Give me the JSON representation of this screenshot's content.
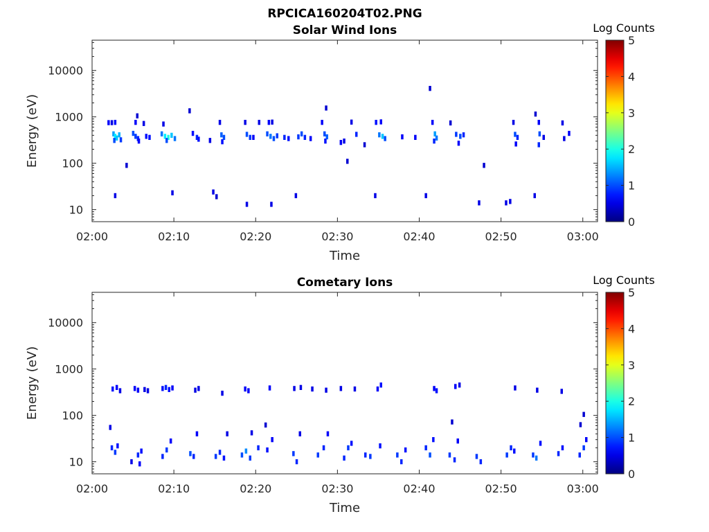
{
  "figure": {
    "title": "RPCICA160204T02.PNG"
  },
  "chart_data": [
    {
      "type": "heatmap",
      "title": "Solar Wind Ions",
      "xlabel": "Time",
      "ylabel": "Energy (eV)",
      "x_ticks": [
        "02:00",
        "02:10",
        "02:20",
        "02:30",
        "02:40",
        "02:50",
        "03:00"
      ],
      "x_range_minutes": [
        0,
        61.8
      ],
      "y_scale": "log",
      "y_ticks": [
        "10",
        "100",
        "1000",
        "10000"
      ],
      "y_range": [
        5.5,
        45000
      ],
      "colorbar": {
        "label": "Log Counts",
        "ticks": [
          "0",
          "1",
          "2",
          "3",
          "4",
          "5"
        ],
        "range": [
          0,
          5
        ],
        "colormap": "jet"
      },
      "grid": false,
      "points": [
        {
          "t": 2.0,
          "e": 750,
          "c": 0.6
        },
        {
          "t": 2.4,
          "e": 750,
          "c": 0.5
        },
        {
          "t": 2.8,
          "e": 760,
          "c": 0.7
        },
        {
          "t": 2.6,
          "e": 430,
          "c": 1.4
        },
        {
          "t": 2.8,
          "e": 380,
          "c": 1.8
        },
        {
          "t": 3.0,
          "e": 350,
          "c": 1.6
        },
        {
          "t": 3.3,
          "e": 410,
          "c": 1.5
        },
        {
          "t": 2.7,
          "e": 310,
          "c": 1.0
        },
        {
          "t": 3.5,
          "e": 320,
          "c": 0.9
        },
        {
          "t": 2.8,
          "e": 20,
          "c": 0.5
        },
        {
          "t": 4.2,
          "e": 90,
          "c": 0.4
        },
        {
          "t": 5.0,
          "e": 440,
          "c": 1.0
        },
        {
          "t": 5.3,
          "e": 380,
          "c": 0.9
        },
        {
          "t": 5.6,
          "e": 340,
          "c": 0.8
        },
        {
          "t": 5.3,
          "e": 760,
          "c": 0.6
        },
        {
          "t": 5.5,
          "e": 1050,
          "c": 0.4
        },
        {
          "t": 5.7,
          "e": 300,
          "c": 0.6
        },
        {
          "t": 6.3,
          "e": 720,
          "c": 0.5
        },
        {
          "t": 6.6,
          "e": 380,
          "c": 0.7
        },
        {
          "t": 7.0,
          "e": 360,
          "c": 0.7
        },
        {
          "t": 8.5,
          "e": 430,
          "c": 1.2
        },
        {
          "t": 8.9,
          "e": 380,
          "c": 1.8
        },
        {
          "t": 9.3,
          "e": 360,
          "c": 2.0
        },
        {
          "t": 9.7,
          "e": 400,
          "c": 1.6
        },
        {
          "t": 10.1,
          "e": 340,
          "c": 1.2
        },
        {
          "t": 9.1,
          "e": 310,
          "c": 1.0
        },
        {
          "t": 8.7,
          "e": 700,
          "c": 0.5
        },
        {
          "t": 9.8,
          "e": 23,
          "c": 0.5
        },
        {
          "t": 11.9,
          "e": 1350,
          "c": 0.4
        },
        {
          "t": 12.3,
          "e": 440,
          "c": 0.7
        },
        {
          "t": 12.8,
          "e": 360,
          "c": 0.8
        },
        {
          "t": 13.0,
          "e": 330,
          "c": 0.7
        },
        {
          "t": 14.4,
          "e": 310,
          "c": 0.5
        },
        {
          "t": 14.8,
          "e": 24,
          "c": 0.5
        },
        {
          "t": 15.2,
          "e": 19,
          "c": 0.4
        },
        {
          "t": 15.6,
          "e": 760,
          "c": 0.5
        },
        {
          "t": 15.8,
          "e": 410,
          "c": 1.1
        },
        {
          "t": 16.1,
          "e": 360,
          "c": 1.0
        },
        {
          "t": 15.9,
          "e": 290,
          "c": 0.7
        },
        {
          "t": 18.7,
          "e": 760,
          "c": 0.5
        },
        {
          "t": 18.9,
          "e": 420,
          "c": 1.0
        },
        {
          "t": 19.3,
          "e": 360,
          "c": 0.9
        },
        {
          "t": 18.9,
          "e": 13,
          "c": 0.5
        },
        {
          "t": 19.7,
          "e": 360,
          "c": 0.6
        },
        {
          "t": 20.4,
          "e": 760,
          "c": 0.5
        },
        {
          "t": 21.4,
          "e": 430,
          "c": 1.0
        },
        {
          "t": 21.8,
          "e": 380,
          "c": 1.2
        },
        {
          "t": 22.2,
          "e": 340,
          "c": 1.0
        },
        {
          "t": 22.6,
          "e": 390,
          "c": 0.9
        },
        {
          "t": 21.6,
          "e": 760,
          "c": 0.6
        },
        {
          "t": 22.0,
          "e": 770,
          "c": 0.5
        },
        {
          "t": 21.9,
          "e": 13,
          "c": 0.5
        },
        {
          "t": 23.5,
          "e": 360,
          "c": 0.8
        },
        {
          "t": 24.0,
          "e": 340,
          "c": 0.7
        },
        {
          "t": 24.9,
          "e": 20,
          "c": 0.5
        },
        {
          "t": 25.2,
          "e": 370,
          "c": 0.9
        },
        {
          "t": 25.6,
          "e": 430,
          "c": 1.0
        },
        {
          "t": 26.0,
          "e": 360,
          "c": 0.8
        },
        {
          "t": 26.7,
          "e": 340,
          "c": 0.6
        },
        {
          "t": 28.1,
          "e": 760,
          "c": 0.6
        },
        {
          "t": 28.4,
          "e": 430,
          "c": 1.0
        },
        {
          "t": 28.7,
          "e": 370,
          "c": 1.1
        },
        {
          "t": 28.6,
          "e": 1550,
          "c": 0.4
        },
        {
          "t": 28.5,
          "e": 300,
          "c": 0.7
        },
        {
          "t": 30.4,
          "e": 280,
          "c": 0.6
        },
        {
          "t": 30.8,
          "e": 300,
          "c": 0.5
        },
        {
          "t": 31.2,
          "e": 110,
          "c": 0.4
        },
        {
          "t": 31.7,
          "e": 770,
          "c": 0.5
        },
        {
          "t": 32.3,
          "e": 420,
          "c": 0.8
        },
        {
          "t": 33.3,
          "e": 250,
          "c": 0.4
        },
        {
          "t": 34.7,
          "e": 760,
          "c": 0.7
        },
        {
          "t": 35.3,
          "e": 780,
          "c": 0.6
        },
        {
          "t": 35.1,
          "e": 410,
          "c": 1.2
        },
        {
          "t": 35.5,
          "e": 380,
          "c": 1.6
        },
        {
          "t": 35.8,
          "e": 340,
          "c": 1.0
        },
        {
          "t": 34.6,
          "e": 20,
          "c": 0.5
        },
        {
          "t": 37.9,
          "e": 370,
          "c": 0.6
        },
        {
          "t": 39.5,
          "e": 360,
          "c": 0.6
        },
        {
          "t": 40.8,
          "e": 20,
          "c": 0.5
        },
        {
          "t": 41.3,
          "e": 4100,
          "c": 0.4
        },
        {
          "t": 41.6,
          "e": 760,
          "c": 0.6
        },
        {
          "t": 41.9,
          "e": 430,
          "c": 1.4
        },
        {
          "t": 42.1,
          "e": 350,
          "c": 1.2
        },
        {
          "t": 41.8,
          "e": 300,
          "c": 0.8
        },
        {
          "t": 43.8,
          "e": 740,
          "c": 0.4
        },
        {
          "t": 44.5,
          "e": 420,
          "c": 0.9
        },
        {
          "t": 45.0,
          "e": 380,
          "c": 1.0
        },
        {
          "t": 45.4,
          "e": 410,
          "c": 0.8
        },
        {
          "t": 44.8,
          "e": 270,
          "c": 0.6
        },
        {
          "t": 47.3,
          "e": 14,
          "c": 0.5
        },
        {
          "t": 47.9,
          "e": 90,
          "c": 0.4
        },
        {
          "t": 50.6,
          "e": 14,
          "c": 0.5
        },
        {
          "t": 51.1,
          "e": 15,
          "c": 0.5
        },
        {
          "t": 51.5,
          "e": 760,
          "c": 0.5
        },
        {
          "t": 51.7,
          "e": 420,
          "c": 1.0
        },
        {
          "t": 52.0,
          "e": 360,
          "c": 0.8
        },
        {
          "t": 51.8,
          "e": 260,
          "c": 0.6
        },
        {
          "t": 54.1,
          "e": 20,
          "c": 0.5
        },
        {
          "t": 54.2,
          "e": 1150,
          "c": 0.4
        },
        {
          "t": 54.6,
          "e": 760,
          "c": 0.6
        },
        {
          "t": 54.7,
          "e": 430,
          "c": 1.0
        },
        {
          "t": 54.6,
          "e": 250,
          "c": 0.8
        },
        {
          "t": 55.2,
          "e": 360,
          "c": 0.5
        },
        {
          "t": 57.5,
          "e": 740,
          "c": 0.5
        },
        {
          "t": 57.7,
          "e": 340,
          "c": 0.5
        },
        {
          "t": 58.3,
          "e": 440,
          "c": 0.6
        }
      ]
    },
    {
      "type": "heatmap",
      "title": "Cometary Ions",
      "xlabel": "Time",
      "ylabel": "Energy (eV)",
      "x_ticks": [
        "02:00",
        "02:10",
        "02:20",
        "02:30",
        "02:40",
        "02:50",
        "03:00"
      ],
      "x_range_minutes": [
        0,
        61.8
      ],
      "y_scale": "log",
      "y_ticks": [
        "10",
        "100",
        "1000",
        "10000"
      ],
      "y_range": [
        5.5,
        45000
      ],
      "colorbar": {
        "label": "Log Counts",
        "ticks": [
          "0",
          "1",
          "2",
          "3",
          "4",
          "5"
        ],
        "range": [
          0,
          5
        ],
        "colormap": "jet"
      },
      "grid": false,
      "points": [
        {
          "t": 2.5,
          "e": 370,
          "c": 0.7
        },
        {
          "t": 3.0,
          "e": 400,
          "c": 0.6
        },
        {
          "t": 3.4,
          "e": 340,
          "c": 0.5
        },
        {
          "t": 5.2,
          "e": 380,
          "c": 0.6
        },
        {
          "t": 5.6,
          "e": 350,
          "c": 0.6
        },
        {
          "t": 6.4,
          "e": 360,
          "c": 0.5
        },
        {
          "t": 6.8,
          "e": 340,
          "c": 0.5
        },
        {
          "t": 8.6,
          "e": 380,
          "c": 0.7
        },
        {
          "t": 9.0,
          "e": 400,
          "c": 0.8
        },
        {
          "t": 9.4,
          "e": 360,
          "c": 0.7
        },
        {
          "t": 9.8,
          "e": 390,
          "c": 0.6
        },
        {
          "t": 12.6,
          "e": 350,
          "c": 0.5
        },
        {
          "t": 13.0,
          "e": 380,
          "c": 0.5
        },
        {
          "t": 15.9,
          "e": 300,
          "c": 0.5
        },
        {
          "t": 18.7,
          "e": 370,
          "c": 0.6
        },
        {
          "t": 19.1,
          "e": 340,
          "c": 0.6
        },
        {
          "t": 21.7,
          "e": 390,
          "c": 0.6
        },
        {
          "t": 24.7,
          "e": 380,
          "c": 0.5
        },
        {
          "t": 25.5,
          "e": 400,
          "c": 0.5
        },
        {
          "t": 26.9,
          "e": 370,
          "c": 0.5
        },
        {
          "t": 28.6,
          "e": 350,
          "c": 0.5
        },
        {
          "t": 30.4,
          "e": 380,
          "c": 0.5
        },
        {
          "t": 32.1,
          "e": 370,
          "c": 0.5
        },
        {
          "t": 34.9,
          "e": 370,
          "c": 0.6
        },
        {
          "t": 35.3,
          "e": 450,
          "c": 0.7
        },
        {
          "t": 41.8,
          "e": 380,
          "c": 0.6
        },
        {
          "t": 42.1,
          "e": 340,
          "c": 0.7
        },
        {
          "t": 44.4,
          "e": 420,
          "c": 0.6
        },
        {
          "t": 44.9,
          "e": 450,
          "c": 0.5
        },
        {
          "t": 51.7,
          "e": 390,
          "c": 0.5
        },
        {
          "t": 54.4,
          "e": 350,
          "c": 0.5
        },
        {
          "t": 57.4,
          "e": 330,
          "c": 0.5
        },
        {
          "t": 2.2,
          "e": 55,
          "c": 0.5
        },
        {
          "t": 21.2,
          "e": 62,
          "c": 0.4
        },
        {
          "t": 44.0,
          "e": 72,
          "c": 0.4
        },
        {
          "t": 59.7,
          "e": 63,
          "c": 0.4
        },
        {
          "t": 60.1,
          "e": 105,
          "c": 0.4
        },
        {
          "t": 2.4,
          "e": 20,
          "c": 0.8
        },
        {
          "t": 2.8,
          "e": 16,
          "c": 0.9
        },
        {
          "t": 3.1,
          "e": 22,
          "c": 0.7
        },
        {
          "t": 4.8,
          "e": 10,
          "c": 0.5
        },
        {
          "t": 5.6,
          "e": 14,
          "c": 0.8
        },
        {
          "t": 6.0,
          "e": 17,
          "c": 0.7
        },
        {
          "t": 5.8,
          "e": 9,
          "c": 0.6
        },
        {
          "t": 8.6,
          "e": 13,
          "c": 0.8
        },
        {
          "t": 9.1,
          "e": 18,
          "c": 0.9
        },
        {
          "t": 9.6,
          "e": 28,
          "c": 0.6
        },
        {
          "t": 12.0,
          "e": 15,
          "c": 1.0
        },
        {
          "t": 12.4,
          "e": 13,
          "c": 0.8
        },
        {
          "t": 12.8,
          "e": 40,
          "c": 0.6
        },
        {
          "t": 15.1,
          "e": 13,
          "c": 0.9
        },
        {
          "t": 15.6,
          "e": 16,
          "c": 0.8
        },
        {
          "t": 16.1,
          "e": 12,
          "c": 0.7
        },
        {
          "t": 16.5,
          "e": 40,
          "c": 0.5
        },
        {
          "t": 18.3,
          "e": 14,
          "c": 1.0
        },
        {
          "t": 18.8,
          "e": 17,
          "c": 1.3
        },
        {
          "t": 19.3,
          "e": 12,
          "c": 0.9
        },
        {
          "t": 20.3,
          "e": 20,
          "c": 0.8
        },
        {
          "t": 19.5,
          "e": 42,
          "c": 0.5
        },
        {
          "t": 21.4,
          "e": 18,
          "c": 0.7
        },
        {
          "t": 22.0,
          "e": 30,
          "c": 0.6
        },
        {
          "t": 24.6,
          "e": 15,
          "c": 0.9
        },
        {
          "t": 25.0,
          "e": 10,
          "c": 0.8
        },
        {
          "t": 25.4,
          "e": 40,
          "c": 0.5
        },
        {
          "t": 27.6,
          "e": 14,
          "c": 0.9
        },
        {
          "t": 28.3,
          "e": 20,
          "c": 0.8
        },
        {
          "t": 28.8,
          "e": 40,
          "c": 0.6
        },
        {
          "t": 30.8,
          "e": 12,
          "c": 0.8
        },
        {
          "t": 31.3,
          "e": 20,
          "c": 0.9
        },
        {
          "t": 31.7,
          "e": 25,
          "c": 0.7
        },
        {
          "t": 33.4,
          "e": 14,
          "c": 0.8
        },
        {
          "t": 34.0,
          "e": 13,
          "c": 0.9
        },
        {
          "t": 35.2,
          "e": 22,
          "c": 0.7
        },
        {
          "t": 37.3,
          "e": 14,
          "c": 0.9
        },
        {
          "t": 37.8,
          "e": 10,
          "c": 0.8
        },
        {
          "t": 38.3,
          "e": 18,
          "c": 0.7
        },
        {
          "t": 40.8,
          "e": 20,
          "c": 0.8
        },
        {
          "t": 41.3,
          "e": 14,
          "c": 1.0
        },
        {
          "t": 41.7,
          "e": 30,
          "c": 0.7
        },
        {
          "t": 43.7,
          "e": 14,
          "c": 0.9
        },
        {
          "t": 44.3,
          "e": 11,
          "c": 0.8
        },
        {
          "t": 44.7,
          "e": 28,
          "c": 0.6
        },
        {
          "t": 47.0,
          "e": 13,
          "c": 0.9
        },
        {
          "t": 47.5,
          "e": 10,
          "c": 0.8
        },
        {
          "t": 50.7,
          "e": 14,
          "c": 0.9
        },
        {
          "t": 51.2,
          "e": 20,
          "c": 0.8
        },
        {
          "t": 51.6,
          "e": 17,
          "c": 0.7
        },
        {
          "t": 53.9,
          "e": 14,
          "c": 0.9
        },
        {
          "t": 54.3,
          "e": 12,
          "c": 1.2
        },
        {
          "t": 54.8,
          "e": 25,
          "c": 0.7
        },
        {
          "t": 57.0,
          "e": 15,
          "c": 0.8
        },
        {
          "t": 57.5,
          "e": 20,
          "c": 0.7
        },
        {
          "t": 59.6,
          "e": 14,
          "c": 0.8
        },
        {
          "t": 60.1,
          "e": 20,
          "c": 0.9
        },
        {
          "t": 60.4,
          "e": 30,
          "c": 0.6
        }
      ]
    }
  ]
}
